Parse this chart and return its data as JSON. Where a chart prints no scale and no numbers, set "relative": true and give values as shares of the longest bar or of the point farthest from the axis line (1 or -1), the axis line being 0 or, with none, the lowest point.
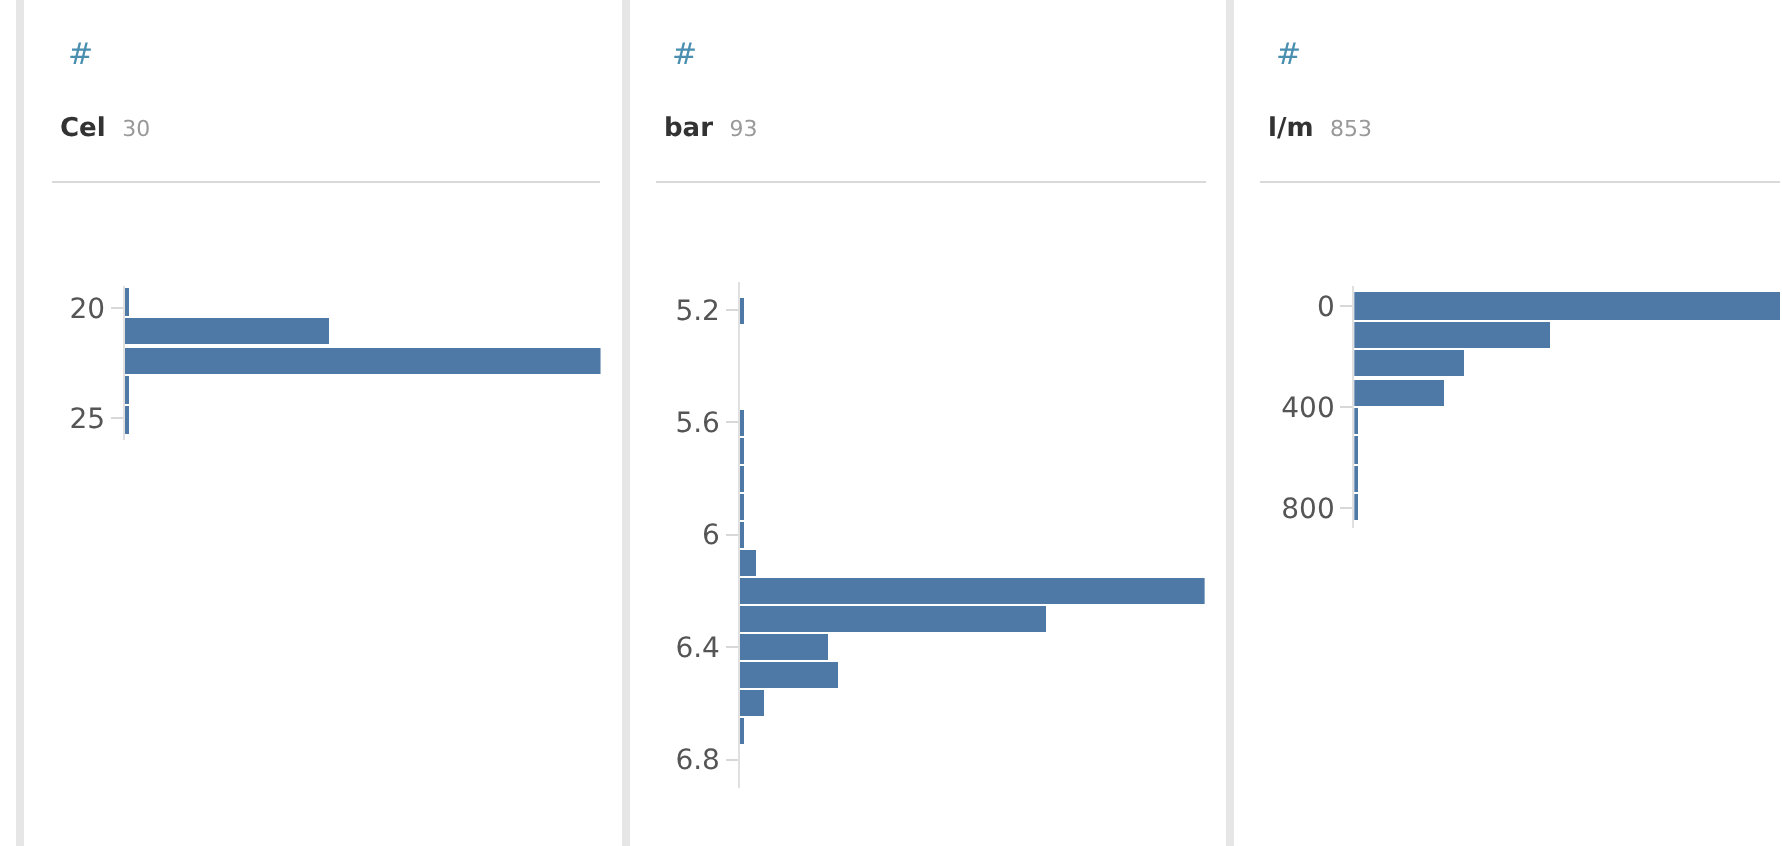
{
  "chart_data": [
    {
      "type": "bar",
      "orientation": "horizontal",
      "relative": true,
      "title": "Cel",
      "subtitle": "30",
      "annotations": [
        "#"
      ],
      "color": "#4e79a7",
      "x": [
        19.7,
        21.05,
        22.4,
        23.75,
        25.1
      ],
      "values": [
        0.01,
        0.43,
        1,
        0.01,
        0.01
      ],
      "ylim": [
        26,
        19
      ],
      "yticks": [
        20,
        25
      ]
    },
    {
      "type": "bar",
      "orientation": "horizontal",
      "relative": true,
      "title": "bar",
      "subtitle": "93",
      "annotations": [
        "#"
      ],
      "color": "#4e79a7",
      "x": [
        5.2,
        5.3,
        5.4,
        5.5,
        5.6,
        5.7,
        5.8,
        5.9,
        6.0,
        6.1,
        6.2,
        6.3,
        6.4,
        6.5,
        6.6,
        6.7
      ],
      "values": [
        0.01,
        0,
        0,
        0,
        0.01,
        0.01,
        0.01,
        0.01,
        0.01,
        0.035,
        1,
        0.66,
        0.19,
        0.21,
        0.053,
        0.01
      ],
      "ylim": [
        6.9,
        5.1
      ],
      "yticks": [
        5.2,
        5.6,
        6,
        6.4,
        6.8
      ]
    },
    {
      "type": "bar",
      "orientation": "horizontal",
      "relative": true,
      "title": "l/m",
      "subtitle": "853",
      "annotations": [
        "#"
      ],
      "color": "#4e79a7",
      "x": [
        0,
        114,
        228,
        342,
        456,
        570,
        684,
        798
      ],
      "values": [
        1,
        0.46,
        0.26,
        0.21,
        0.01,
        0.01,
        0.01,
        0.01
      ],
      "ylim": [
        880,
        -80
      ],
      "yticks": [
        0,
        400,
        800
      ]
    }
  ]
}
